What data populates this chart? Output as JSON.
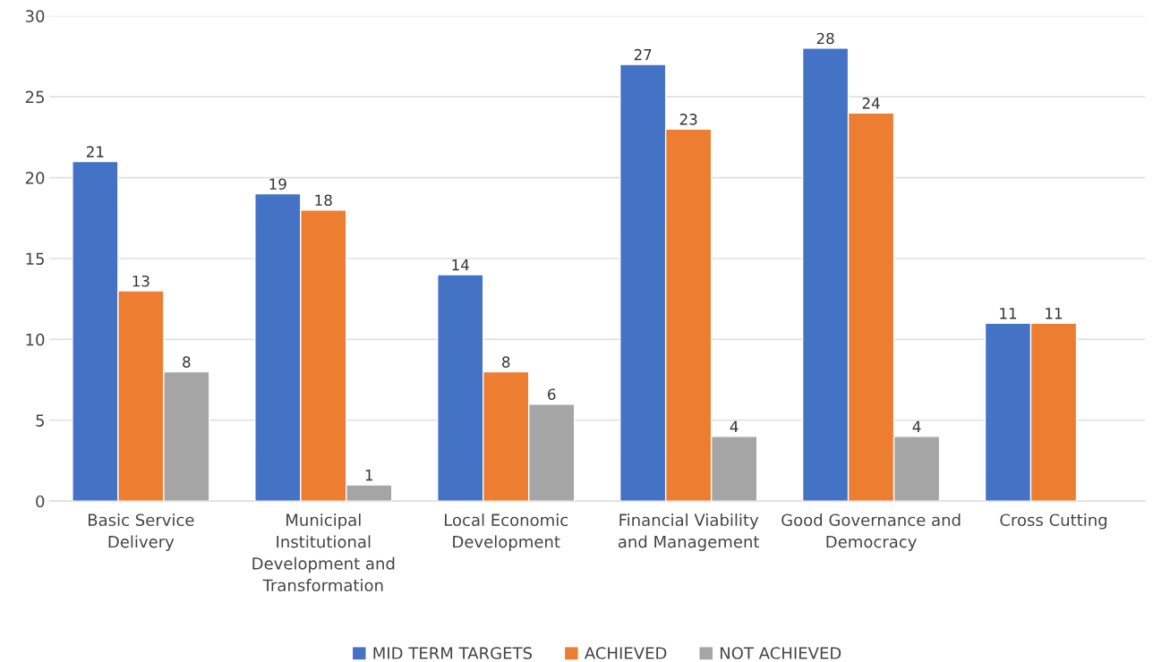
{
  "chart_data": {
    "type": "bar",
    "categories": [
      "Basic Service Delivery",
      "Municipal Institutional Development and Transformation",
      "Local Economic Development",
      "Financial Viability and Management",
      "Good Governance and Democracy",
      "Cross Cutting"
    ],
    "series": [
      {
        "name": "MID TERM TARGETS",
        "color": "#4472c4",
        "values": [
          21,
          19,
          14,
          27,
          28,
          11
        ]
      },
      {
        "name": "ACHIEVED",
        "color": "#ed7d31",
        "values": [
          13,
          18,
          8,
          23,
          24,
          11
        ]
      },
      {
        "name": "NOT ACHIEVED",
        "color": "#a5a5a5",
        "values": [
          8,
          1,
          6,
          4,
          4,
          null
        ]
      }
    ],
    "ylim": [
      0,
      30
    ],
    "yticks": [
      0,
      5,
      10,
      15,
      20,
      25,
      30
    ],
    "grid": "y",
    "legend": "bottom",
    "data_labels": true
  }
}
